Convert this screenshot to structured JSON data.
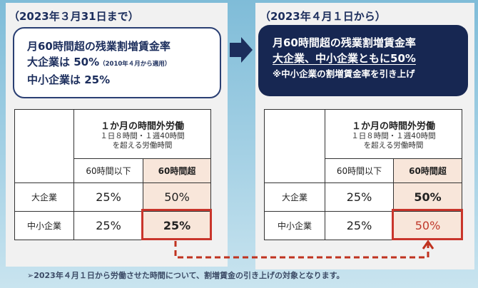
{
  "before": {
    "title": "（2023年３月31日まで）",
    "box_line1": "月60時間超の残業割増賃金率",
    "box_line2": "大企業は 50%",
    "box_note": "（2010年４月から適用）",
    "box_line3": "中小企業は 25%",
    "table": {
      "header": "１か月の時間外労働",
      "header_sub1": "１日８時間・１週40時間",
      "header_sub2": "を超える労働時間",
      "col1": "60時間以下",
      "col2": "60時間超",
      "rows": [
        {
          "label": "大企業",
          "v1": "25%",
          "v2": "50%"
        },
        {
          "label": "中小企業",
          "v1": "25%",
          "v2": "25%"
        }
      ]
    }
  },
  "after": {
    "title": "（2023年４月１日から）",
    "box_line1": "月60時間超の残業割増賃金率",
    "box_line2": "大企業、中小企業ともに50%",
    "box_line3": "※中小企業の割増賃金率を引き上げ",
    "table": {
      "header": "１か月の時間外労働",
      "header_sub1": "１日８時間・１週40時間",
      "header_sub2": "を超える労働時間",
      "col1": "60時間以下",
      "col2": "60時間超",
      "rows": [
        {
          "label": "大企業",
          "v1": "25%",
          "v2": "50%"
        },
        {
          "label": "中小企業",
          "v1": "25%",
          "v2": "50%"
        }
      ]
    }
  },
  "footer": "➢2023年４月１日から労働させた時間について、割増賃金の引き上げの対象となります。",
  "colors": {
    "navy": "#172752",
    "highlight": "#c9352b",
    "peach": "#f8e6da"
  }
}
